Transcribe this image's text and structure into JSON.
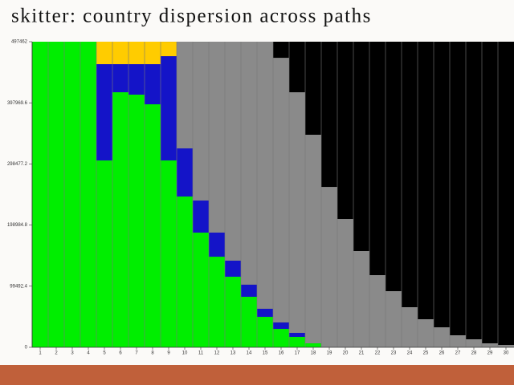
{
  "chart_data": {
    "type": "stacked-bar",
    "title": "skitter: country dispersion across paths",
    "categories": [
      "1",
      "2",
      "3",
      "4",
      "5",
      "6",
      "7",
      "8",
      "9",
      "10",
      "11",
      "12",
      "13",
      "14",
      "15",
      "16",
      "17",
      "18",
      "19",
      "20",
      "21",
      "22",
      "23",
      "24",
      "25",
      "26",
      "27",
      "28",
      "29",
      "30"
    ],
    "series": [
      {
        "color": "#00ee00",
        "values": [
          497462,
          497462,
          497462,
          497462,
          304200,
          415200,
          411300,
          395600,
          304200,
          245500,
          186700,
          147500,
          114900,
          82300,
          49600,
          30000,
          17000,
          6500,
          0,
          0,
          0,
          0,
          0,
          0,
          0,
          0,
          0,
          0,
          0,
          0
        ]
      },
      {
        "color": "#1414c8",
        "values": [
          0,
          0,
          0,
          0,
          156700,
          45700,
          49600,
          65300,
          169700,
          78300,
          52200,
          39200,
          26100,
          19600,
          13100,
          10400,
          6500,
          0,
          0,
          0,
          0,
          0,
          0,
          0,
          0,
          0,
          0,
          0,
          0,
          0
        ]
      },
      {
        "color": "#ffcc00",
        "values": [
          0,
          0,
          0,
          0,
          36600,
          36600,
          36600,
          36600,
          23500,
          0,
          0,
          0,
          0,
          0,
          0,
          0,
          0,
          0,
          0,
          0,
          0,
          0,
          0,
          0,
          0,
          0,
          0,
          0,
          0,
          0
        ]
      },
      {
        "color": "#8a8a8a",
        "values": [
          0,
          0,
          0,
          0,
          0,
          0,
          0,
          0,
          0,
          173700,
          258500,
          310800,
          356500,
          395600,
          434800,
          430900,
          391700,
          339500,
          261100,
          208900,
          156700,
          117500,
          91400,
          65300,
          45700,
          32600,
          19600,
          13100,
          6500,
          3900
        ]
      },
      {
        "color": "#000000",
        "values": [
          0,
          0,
          0,
          0,
          0,
          0,
          0,
          0,
          0,
          0,
          0,
          0,
          0,
          0,
          0,
          26100,
          82300,
          151500,
          236300,
          288600,
          340800,
          380000,
          406100,
          432200,
          451800,
          464800,
          477900,
          484400,
          490900,
          493600
        ]
      }
    ],
    "ylim": [
      0,
      497462
    ],
    "yticks": [
      0,
      99492.4,
      198984.8,
      298477.2,
      397969.6,
      497462
    ]
  }
}
